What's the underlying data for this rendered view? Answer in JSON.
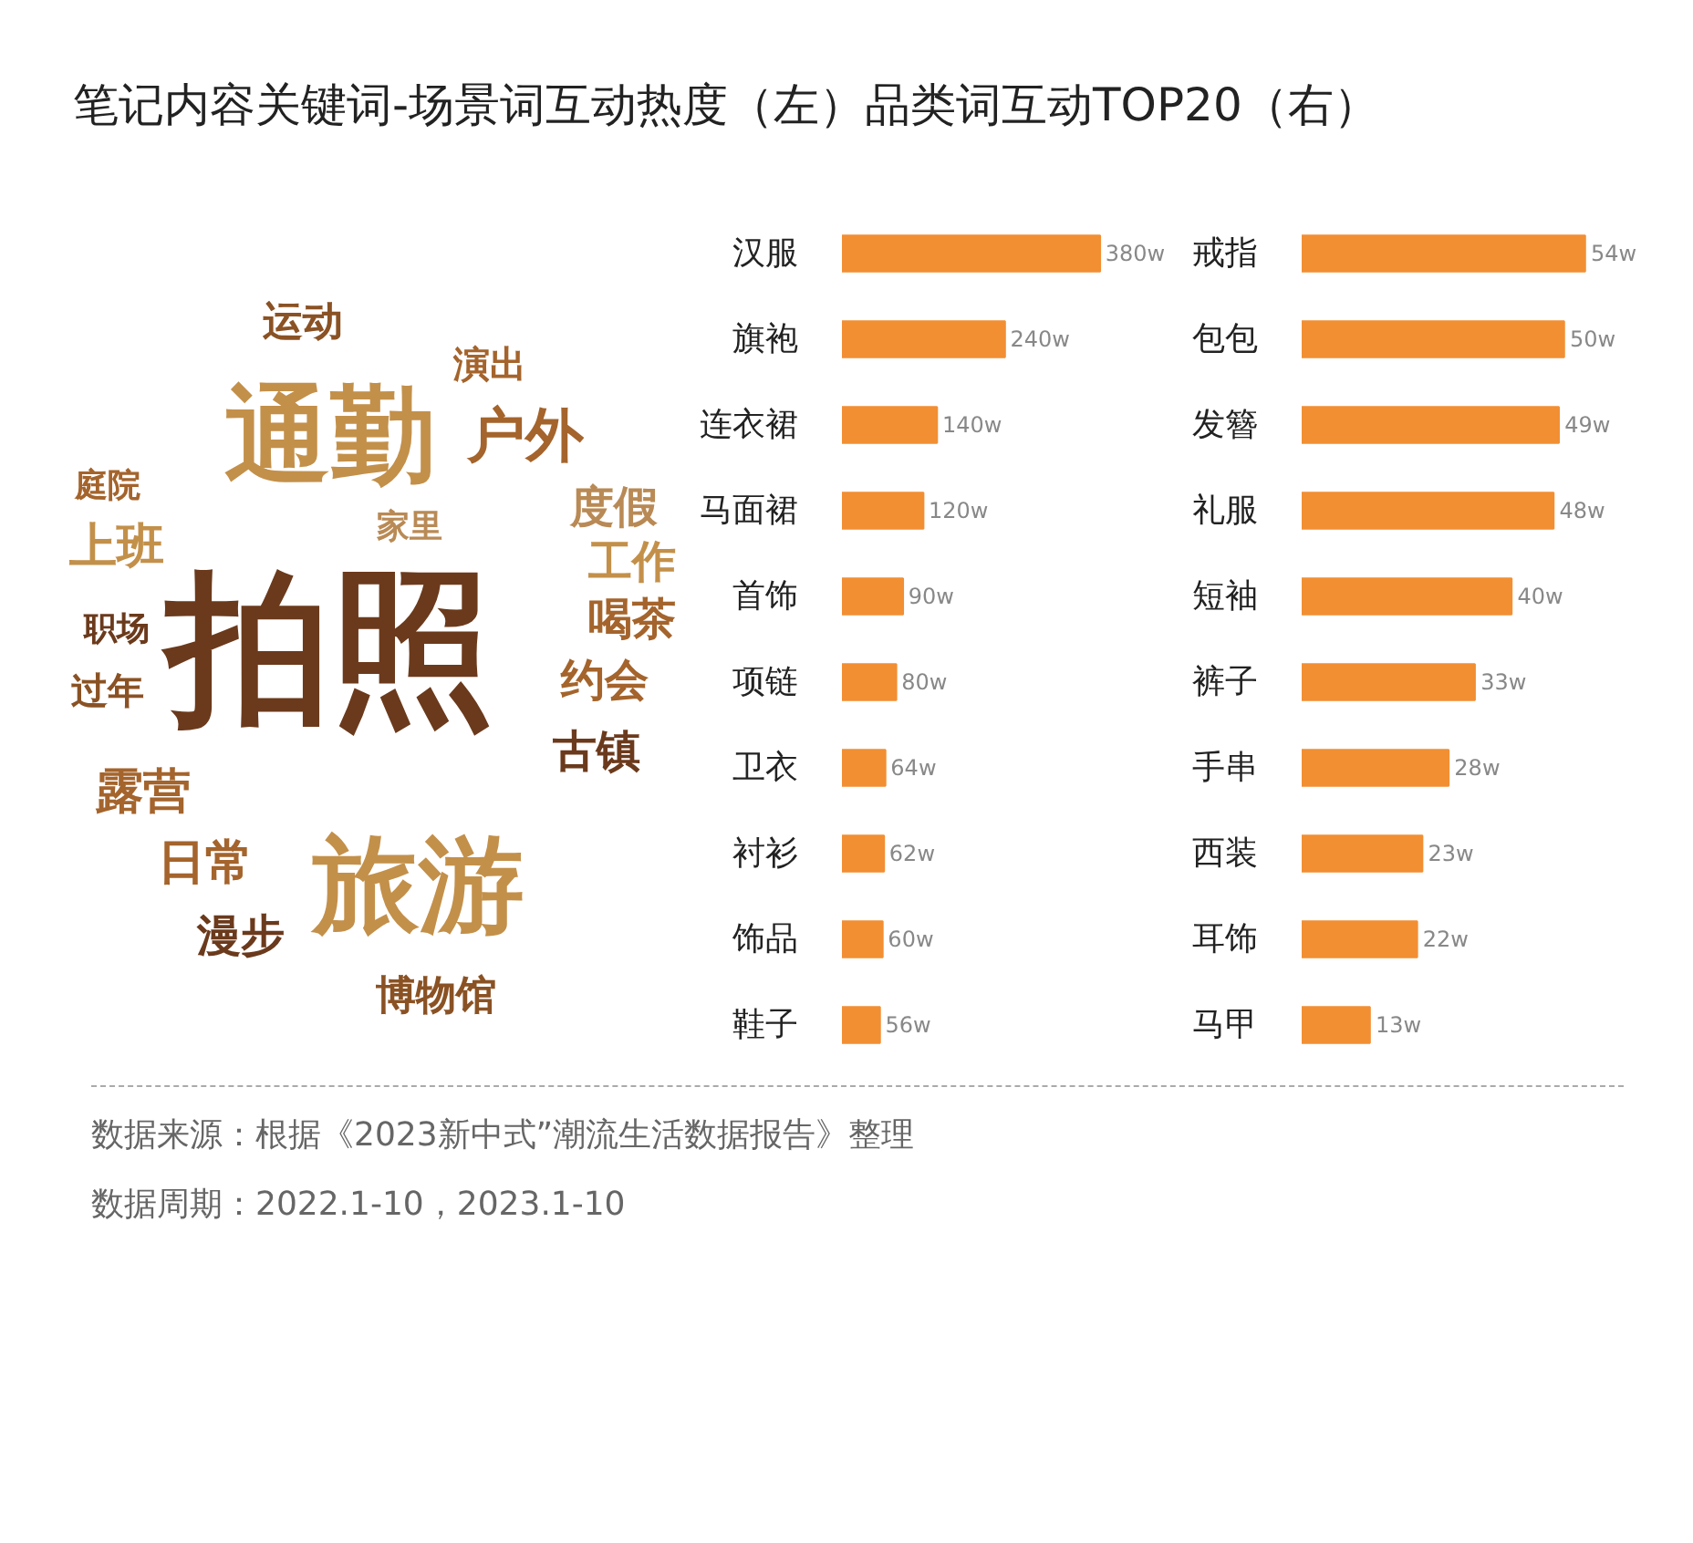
{
  "chart_data": [
    {
      "type": "other",
      "title": "笔记内容关键词-场景词互动热度（左）品类词互动TOP20（右）",
      "annotations": [
        "拍照",
        "通勤",
        "旅游",
        "户外",
        "运动",
        "演出",
        "庭院",
        "上班",
        "家里",
        "度假",
        "工作",
        "喝茶",
        "职场",
        "过年",
        "约会",
        "露营",
        "古镇",
        "日常",
        "漫步",
        "博物馆"
      ],
      "colors": [
        "#6b3a1c",
        "#c3904a",
        "#c3904a",
        "#a4642c",
        "#8a5224",
        "#a4642c",
        "#a4642c",
        "#c3904a",
        "#b98a55",
        "#b98a55",
        "#c3904a",
        "#a4642c",
        "#6b3a1c",
        "#8a5224",
        "#a4642c",
        "#a4642c",
        "#6b3a1c",
        "#a4642c",
        "#6b3a1c",
        "#8a5224"
      ]
    },
    {
      "type": "bar",
      "orientation": "horizontal",
      "categories": [
        "汉服",
        "旗袍",
        "连衣裙",
        "马面裙",
        "首饰",
        "项链",
        "卫衣",
        "衬衫",
        "饰品",
        "鞋子"
      ],
      "values": [
        380,
        240,
        140,
        120,
        90,
        80,
        64,
        62,
        60,
        56
      ],
      "value_labels": [
        "380w",
        "240w",
        "140w",
        "120w",
        "90w",
        "80w",
        "64w",
        "62w",
        "60w",
        "56w"
      ],
      "color": "#f28f33"
    },
    {
      "type": "bar",
      "orientation": "horizontal",
      "categories": [
        "戒指",
        "包包",
        "发簪",
        "礼服",
        "短袖",
        "裤子",
        "手串",
        "西装",
        "耳饰",
        "马甲"
      ],
      "values": [
        54,
        50,
        49,
        48,
        40,
        33,
        28,
        23,
        22,
        13
      ],
      "value_labels": [
        "54w",
        "50w",
        "49w",
        "48w",
        "40w",
        "33w",
        "28w",
        "23w",
        "22w",
        "13w"
      ],
      "color": "#f28f33",
      "annotations": [
        "数据来源：根据《2023新中式”潮流生活数据报告》整理",
        "数据周期：2022.1-10，2023.1-10"
      ]
    }
  ]
}
